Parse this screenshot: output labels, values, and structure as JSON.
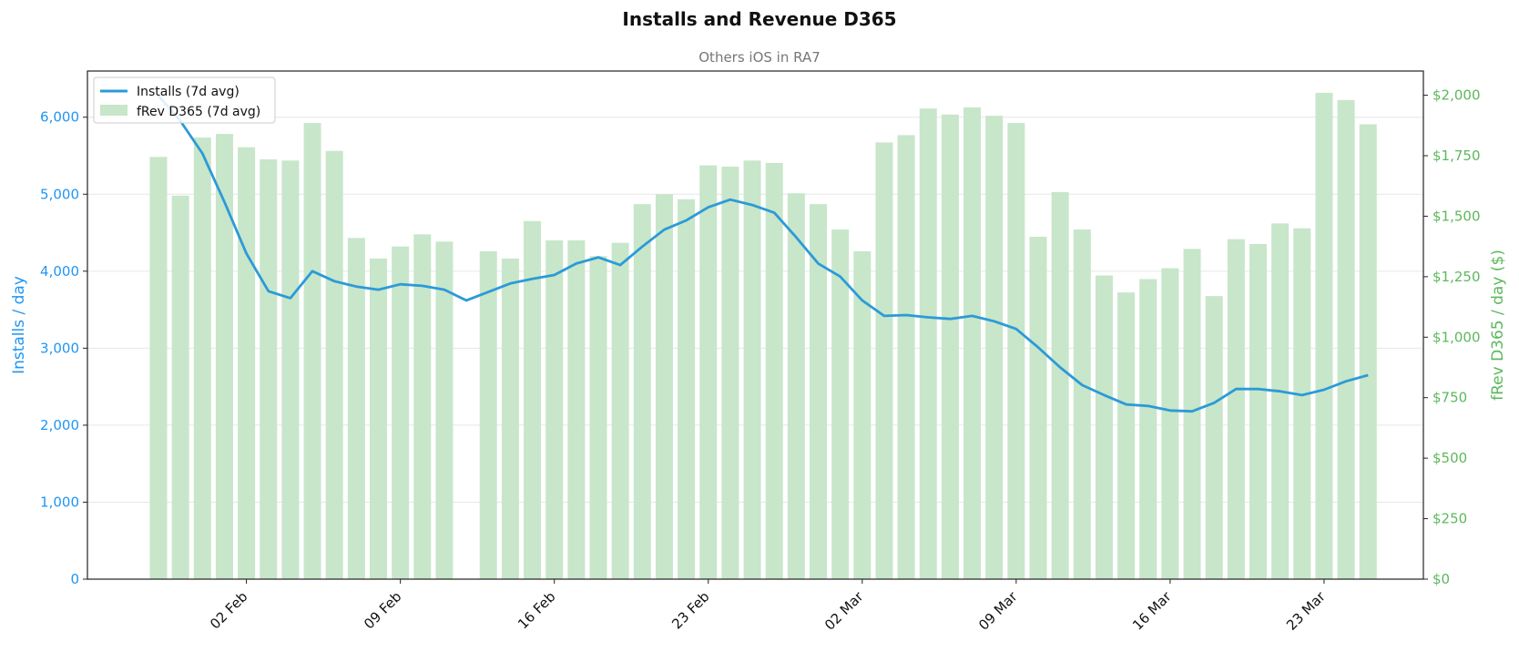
{
  "chart_data": {
    "type": "bar+line",
    "title": "Installs and Revenue D365",
    "subtitle": "Others iOS in RA7",
    "ylabel_left": "Installs / day",
    "ylabel_right": "fRev D365 / day ($)",
    "ylim_left": [
      0,
      6600
    ],
    "ylim_right": [
      0,
      2100
    ],
    "grid": true,
    "legend_position": "top-left",
    "colors": {
      "installs": "#2b9ad9",
      "revenue_bar": "#c8e6c9",
      "right_axis": "#5cb85c",
      "left_axis": "#2196f3",
      "title": "#111111",
      "subtitle": "#777777"
    },
    "x": [
      "2025-01-29",
      "2025-01-30",
      "2025-01-31",
      "2025-02-01",
      "2025-02-02",
      "2025-02-03",
      "2025-02-04",
      "2025-02-05",
      "2025-02-06",
      "2025-02-07",
      "2025-02-08",
      "2025-02-09",
      "2025-02-10",
      "2025-02-11",
      "2025-02-12",
      "2025-02-13",
      "2025-02-14",
      "2025-02-15",
      "2025-02-16",
      "2025-02-17",
      "2025-02-18",
      "2025-02-19",
      "2025-02-20",
      "2025-02-21",
      "2025-02-22",
      "2025-02-23",
      "2025-02-24",
      "2025-02-25",
      "2025-02-26",
      "2025-02-27",
      "2025-02-28",
      "2025-03-01",
      "2025-03-02",
      "2025-03-03",
      "2025-03-04",
      "2025-03-05",
      "2025-03-06",
      "2025-03-07",
      "2025-03-08",
      "2025-03-09",
      "2025-03-10",
      "2025-03-11",
      "2025-03-12",
      "2025-03-13",
      "2025-03-14",
      "2025-03-15",
      "2025-03-16",
      "2025-03-17",
      "2025-03-18",
      "2025-03-19",
      "2025-03-20",
      "2025-03-21",
      "2025-03-22",
      "2025-03-23",
      "2025-03-24",
      "2025-03-25",
      "2025-03-26"
    ],
    "x_tick_labels": [
      {
        "index": 4,
        "label": "02 Feb"
      },
      {
        "index": 11,
        "label": "09 Feb"
      },
      {
        "index": 18,
        "label": "16 Feb"
      },
      {
        "index": 25,
        "label": "23 Feb"
      },
      {
        "index": 32,
        "label": "02 Mar"
      },
      {
        "index": 39,
        "label": "09 Mar"
      },
      {
        "index": 46,
        "label": "16 Mar"
      },
      {
        "index": 53,
        "label": "23 Mar"
      }
    ],
    "y_left_ticks": [
      {
        "value": 0,
        "label": "0"
      },
      {
        "value": 1000,
        "label": "1,000"
      },
      {
        "value": 2000,
        "label": "2,000"
      },
      {
        "value": 3000,
        "label": "3,000"
      },
      {
        "value": 4000,
        "label": "4,000"
      },
      {
        "value": 5000,
        "label": "5,000"
      },
      {
        "value": 6000,
        "label": "6,000"
      }
    ],
    "y_right_ticks": [
      {
        "value": 0,
        "label": "$0"
      },
      {
        "value": 250,
        "label": "$250"
      },
      {
        "value": 500,
        "label": "$500"
      },
      {
        "value": 750,
        "label": "$750"
      },
      {
        "value": 1000,
        "label": "$1,000"
      },
      {
        "value": 1250,
        "label": "$1,250"
      },
      {
        "value": 1500,
        "label": "$1,500"
      },
      {
        "value": 1750,
        "label": "$1,750"
      },
      {
        "value": 2000,
        "label": "$2,000"
      }
    ],
    "series": [
      {
        "name": "fRev D365 (7d avg)",
        "kind": "bar",
        "axis": "right",
        "values": [
          1745,
          1585,
          1825,
          1840,
          1785,
          1735,
          1730,
          1885,
          1770,
          1410,
          1325,
          1375,
          1425,
          1395,
          null,
          1355,
          1325,
          1480,
          1400,
          1400,
          1335,
          1390,
          1550,
          1590,
          1570,
          1710,
          1705,
          1730,
          1720,
          1595,
          1550,
          1445,
          1355,
          1805,
          1835,
          1945,
          1920,
          1950,
          1915,
          1885,
          1415,
          1600,
          1445,
          1255,
          1185,
          1240,
          1285,
          1365,
          1170,
          1405,
          1385,
          1470,
          1450,
          2010,
          1980,
          1880,
          null
        ]
      },
      {
        "name": "Installs (7d avg)",
        "kind": "line",
        "axis": "left",
        "values": [
          6280,
          5950,
          5530,
          4900,
          4230,
          3740,
          3650,
          4000,
          3870,
          3800,
          3760,
          3830,
          3810,
          3760,
          3620,
          3730,
          3840,
          3900,
          3950,
          4100,
          4180,
          4080,
          4320,
          4540,
          4660,
          4830,
          4930,
          4860,
          4760,
          4440,
          4100,
          3930,
          3620,
          3420,
          3430,
          3400,
          3380,
          3420,
          3350,
          3250,
          3010,
          2750,
          2520,
          2390,
          2270,
          2250,
          2190,
          2180,
          2290,
          2470,
          2470,
          2440,
          2390,
          2460,
          2570,
          2650,
          null
        ]
      }
    ]
  }
}
